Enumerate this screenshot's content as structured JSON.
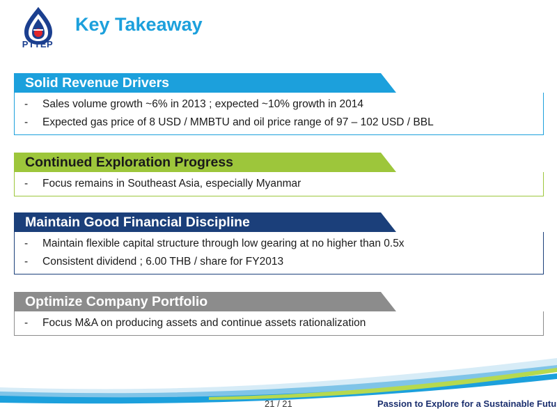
{
  "header": {
    "logo_text": "PTTEP",
    "title": "Key Takeaway"
  },
  "sections": [
    {
      "heading": "Solid Revenue Drivers",
      "color": "#1ca0dc",
      "bullets": [
        "Sales volume growth ~6% in 2013 ; expected ~10% growth in 2014",
        "Expected gas price of 8 USD / MMBTU and oil price range of 97 – 102 USD / BBL"
      ]
    },
    {
      "heading": "Continued Exploration Progress",
      "color": "#9dc63b",
      "bullets": [
        "Focus remains in Southeast Asia, especially Myanmar"
      ]
    },
    {
      "heading": "Maintain Good Financial Discipline",
      "color": "#1b3f7a",
      "bullets": [
        "Maintain flexible capital structure through low gearing at no higher than 0.5x",
        "Consistent dividend ; 6.00 THB / share for FY2013"
      ]
    },
    {
      "heading": "Optimize Company Portfolio",
      "color": "#8c8c8c",
      "bullets": [
        "Focus M&A on producing assets and continue assets rationalization"
      ]
    }
  ],
  "footer": {
    "page": "21 / 21",
    "tagline": "Passion to Explore for a Sustainable Future"
  },
  "bullet_marker": "-"
}
